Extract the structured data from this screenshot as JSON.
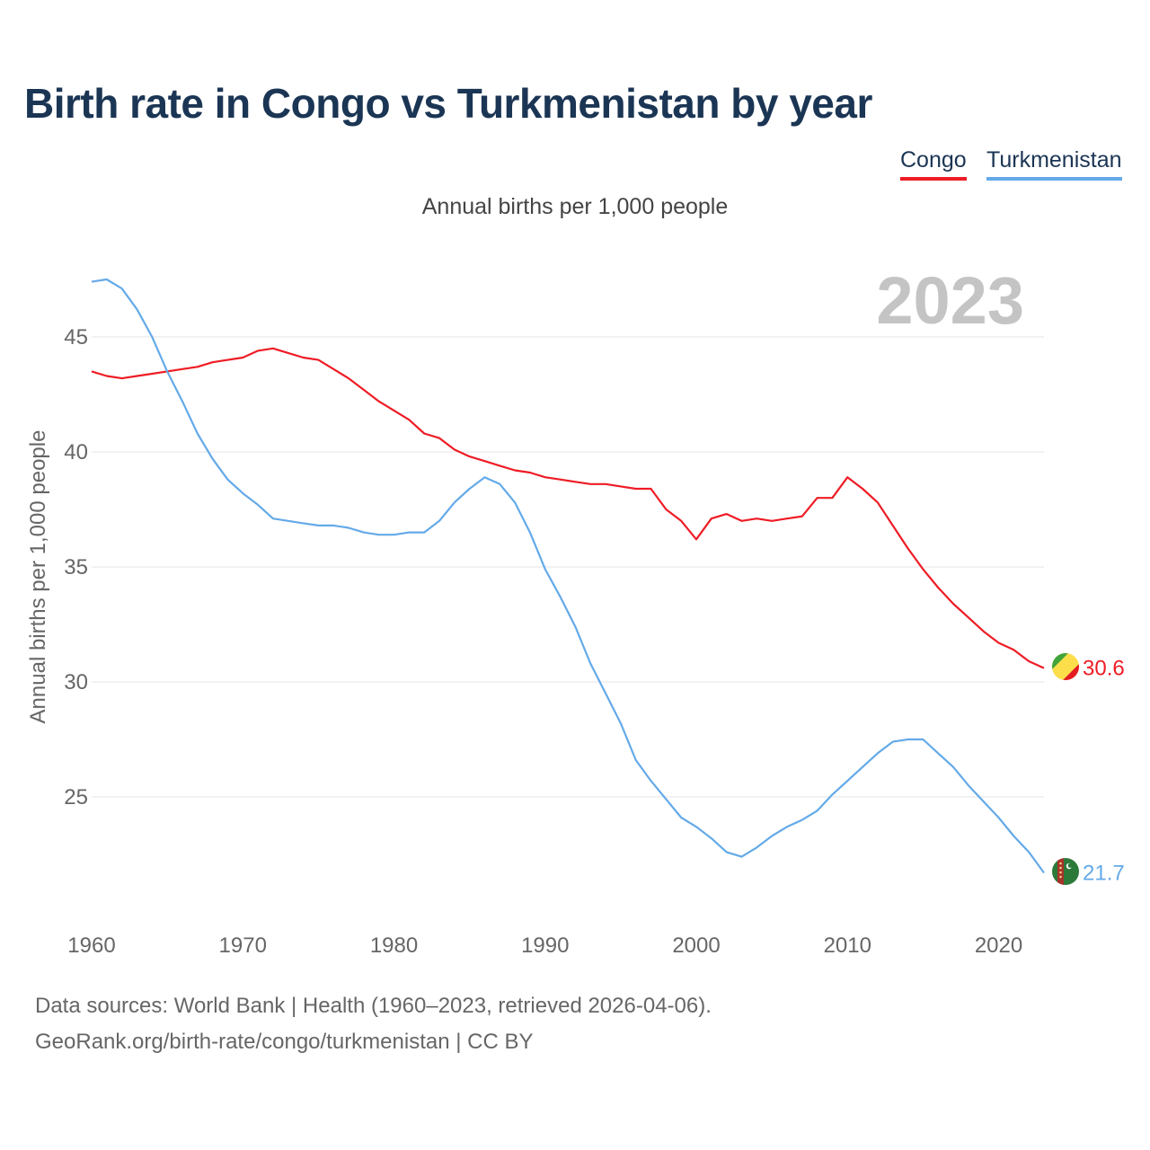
{
  "title": "Birth rate in Congo vs Turkmenistan by year",
  "subtitle": "Annual births per 1,000 people",
  "year_label": "2023",
  "legend": [
    {
      "name": "Congo",
      "color": "#ee1c25"
    },
    {
      "name": "Turkmenistan",
      "color": "#64aae8"
    }
  ],
  "source_line1": "Data sources: World Bank | Health (1960–2023, retrieved 2026-04-06).",
  "source_line2": "GeoRank.org/birth-rate/congo/turkmenistan | CC BY",
  "flag_icons": [
    "congo-flag-icon",
    "turkmenistan-flag-icon"
  ],
  "chart_data": {
    "type": "line",
    "title": "Birth rate in Congo vs Turkmenistan by year",
    "ylabel": "Annual births per 1,000 people",
    "xlabel": "",
    "xlim": [
      1960,
      2023
    ],
    "ylim": [
      20.5,
      48
    ],
    "grid": true,
    "xticks": [
      1960,
      1970,
      1980,
      1990,
      2000,
      2010,
      2020
    ],
    "yticks": [
      25,
      30,
      35,
      40,
      45
    ],
    "x": [
      1960,
      1961,
      1962,
      1963,
      1964,
      1965,
      1966,
      1967,
      1968,
      1969,
      1970,
      1971,
      1972,
      1973,
      1974,
      1975,
      1976,
      1977,
      1978,
      1979,
      1980,
      1981,
      1982,
      1983,
      1984,
      1985,
      1986,
      1987,
      1988,
      1989,
      1990,
      1991,
      1992,
      1993,
      1994,
      1995,
      1996,
      1997,
      1998,
      1999,
      2000,
      2001,
      2002,
      2003,
      2004,
      2005,
      2006,
      2007,
      2008,
      2009,
      2010,
      2011,
      2012,
      2013,
      2014,
      2015,
      2016,
      2017,
      2018,
      2019,
      2020,
      2021,
      2022,
      2023
    ],
    "series": [
      {
        "name": "Congo",
        "color": "#ee1c25",
        "end_label": "30.6",
        "values": [
          43.5,
          43.3,
          43.2,
          43.3,
          43.4,
          43.5,
          43.6,
          43.7,
          43.9,
          44.0,
          44.1,
          44.4,
          44.5,
          44.3,
          44.1,
          44.0,
          43.6,
          43.2,
          42.7,
          42.2,
          41.8,
          41.4,
          40.8,
          40.6,
          40.1,
          39.8,
          39.6,
          39.4,
          39.2,
          39.1,
          38.9,
          38.8,
          38.7,
          38.6,
          38.6,
          38.5,
          38.4,
          38.4,
          37.5,
          37.0,
          36.2,
          37.1,
          37.3,
          37.0,
          37.1,
          37.0,
          37.1,
          37.2,
          38.0,
          38.0,
          38.9,
          38.4,
          37.8,
          36.8,
          35.8,
          34.9,
          34.1,
          33.4,
          32.8,
          32.2,
          31.7,
          31.4,
          30.9,
          30.6
        ]
      },
      {
        "name": "Turkmenistan",
        "color": "#64aae8",
        "end_label": "21.7",
        "values": [
          47.4,
          47.5,
          47.1,
          46.2,
          45.0,
          43.5,
          42.2,
          40.8,
          39.7,
          38.8,
          38.2,
          37.7,
          37.1,
          37.0,
          36.9,
          36.8,
          36.8,
          36.7,
          36.5,
          36.4,
          36.4,
          36.5,
          36.5,
          37.0,
          37.8,
          38.4,
          38.9,
          38.6,
          37.8,
          36.5,
          34.9,
          33.7,
          32.4,
          30.8,
          29.5,
          28.2,
          26.6,
          25.7,
          24.9,
          24.1,
          23.7,
          23.2,
          22.6,
          22.4,
          22.8,
          23.3,
          23.7,
          24.0,
          24.4,
          25.1,
          25.7,
          26.3,
          26.9,
          27.4,
          27.5,
          27.5,
          26.9,
          26.3,
          25.5,
          24.8,
          24.1,
          23.3,
          22.6,
          21.7
        ]
      }
    ]
  }
}
